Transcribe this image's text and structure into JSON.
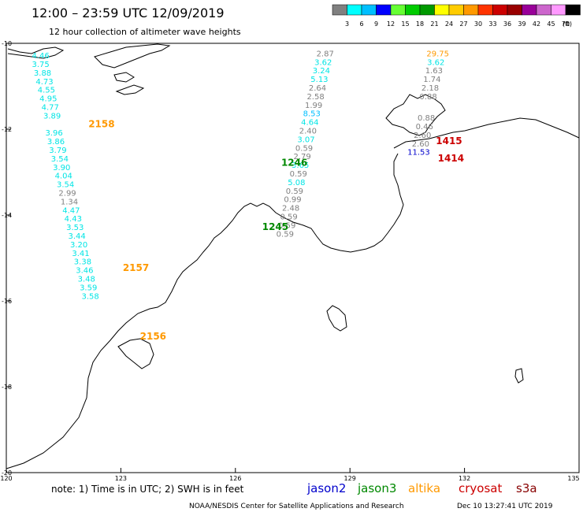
{
  "header": {
    "title": "12:00 – 23:59 UTC 12/09/2019",
    "subtitle": "12 hour collection of altimeter wave heights"
  },
  "color_scale": {
    "labels": [
      "3",
      "6",
      "9",
      "12",
      "15",
      "18",
      "21",
      "24",
      "27",
      "30",
      "33",
      "36",
      "39",
      "42",
      "45",
      "70"
    ],
    "unit": "(ft)",
    "colors": [
      "#808080",
      "#00ffff",
      "#00bfff",
      "#0000ff",
      "#66ff33",
      "#00cc00",
      "#009900",
      "#ffff00",
      "#ffcc00",
      "#ff9900",
      "#ff3300",
      "#cc0000",
      "#990000",
      "#990099",
      "#cc66cc",
      "#ff99ff",
      "#000000"
    ]
  },
  "axes": {
    "y_labels": [
      "-10",
      "-12",
      "-14",
      "-16",
      "-18",
      "-20"
    ],
    "x_labels": [
      "120",
      "123",
      "126",
      "129",
      "132",
      "135"
    ]
  },
  "footer": {
    "note": "note:  1) Time is in UTC;  2) SWH is in feet",
    "credit": "NOAA/NESDIS Center for Satellite Applications and Research",
    "timestamp": "Dec 10 13:27:41 UTC 2019",
    "missions": [
      {
        "name": "jason2",
        "color": "#0000cc"
      },
      {
        "name": "jason3",
        "color": "#008800"
      },
      {
        "name": "altika",
        "color": "#ff9900"
      },
      {
        "name": "cryosat",
        "color": "#cc0000"
      },
      {
        "name": "s3a",
        "color": "#880000"
      }
    ]
  },
  "tracks": [
    {
      "mission": "altika",
      "color": "#ff9900",
      "labels": [
        {
          "text": "2158",
          "lon": 122.15,
          "lat": -11.95
        },
        {
          "text": "2157",
          "lon": 123.05,
          "lat": -15.3
        },
        {
          "text": "2156",
          "lon": 123.5,
          "lat": -16.9
        }
      ],
      "points": [
        {
          "v": "4.46",
          "lon": 120.9,
          "lat": -10.35,
          "c": "#00e5e5"
        },
        {
          "v": "3.75",
          "lon": 120.9,
          "lat": -10.55,
          "c": "#00e5e5"
        },
        {
          "v": "3.88",
          "lon": 120.95,
          "lat": -10.75,
          "c": "#00e5e5"
        },
        {
          "v": "4.73",
          "lon": 121.0,
          "lat": -10.95,
          "c": "#00e5e5"
        },
        {
          "v": "4.55",
          "lon": 121.05,
          "lat": -11.15,
          "c": "#00e5e5"
        },
        {
          "v": "4.95",
          "lon": 121.1,
          "lat": -11.35,
          "c": "#00e5e5"
        },
        {
          "v": "4.77",
          "lon": 121.15,
          "lat": -11.55,
          "c": "#00e5e5"
        },
        {
          "v": "3.89",
          "lon": 121.2,
          "lat": -11.75,
          "c": "#00e5e5"
        },
        {
          "v": "3.96",
          "lon": 121.25,
          "lat": -12.15,
          "c": "#00e5e5"
        },
        {
          "v": "3.86",
          "lon": 121.3,
          "lat": -12.35,
          "c": "#00e5e5"
        },
        {
          "v": "3.79",
          "lon": 121.35,
          "lat": -12.55,
          "c": "#00e5e5"
        },
        {
          "v": "3.54",
          "lon": 121.4,
          "lat": -12.75,
          "c": "#00e5e5"
        },
        {
          "v": "3.90",
          "lon": 121.45,
          "lat": -12.95,
          "c": "#00e5e5"
        },
        {
          "v": "4.04",
          "lon": 121.5,
          "lat": -13.15,
          "c": "#00e5e5"
        },
        {
          "v": "3.54",
          "lon": 121.55,
          "lat": -13.35,
          "c": "#00e5e5"
        },
        {
          "v": "2.99",
          "lon": 121.6,
          "lat": -13.55,
          "c": "#808080"
        },
        {
          "v": "1.34",
          "lon": 121.65,
          "lat": -13.75,
          "c": "#808080"
        },
        {
          "v": "4.47",
          "lon": 121.7,
          "lat": -13.95,
          "c": "#00e5e5"
        },
        {
          "v": "4.43",
          "lon": 121.75,
          "lat": -14.15,
          "c": "#00e5e5"
        },
        {
          "v": "3.53",
          "lon": 121.8,
          "lat": -14.35,
          "c": "#00e5e5"
        },
        {
          "v": "3.44",
          "lon": 121.85,
          "lat": -14.55,
          "c": "#00e5e5"
        },
        {
          "v": "3.20",
          "lon": 121.9,
          "lat": -14.75,
          "c": "#00e5e5"
        },
        {
          "v": "3.41",
          "lon": 121.95,
          "lat": -14.95,
          "c": "#00e5e5"
        },
        {
          "v": "3.38",
          "lon": 122.0,
          "lat": -15.15,
          "c": "#00e5e5"
        },
        {
          "v": "3.46",
          "lon": 122.05,
          "lat": -15.35,
          "c": "#00e5e5"
        },
        {
          "v": "3.48",
          "lon": 122.1,
          "lat": -15.55,
          "c": "#00e5e5"
        },
        {
          "v": "3.59",
          "lon": 122.15,
          "lat": -15.75,
          "c": "#00e5e5"
        },
        {
          "v": "3.58",
          "lon": 122.2,
          "lat": -15.95,
          "c": "#00e5e5"
        }
      ]
    },
    {
      "mission": "jason3",
      "color": "#008800",
      "labels": [
        {
          "text": "1246",
          "lon": 127.2,
          "lat": -12.85
        },
        {
          "text": "1245",
          "lon": 126.7,
          "lat": -14.35
        }
      ],
      "points": [
        {
          "v": "2.87",
          "lon": 128.35,
          "lat": -10.3,
          "c": "#808080"
        },
        {
          "v": "3.62",
          "lon": 128.3,
          "lat": -10.5,
          "c": "#00e5e5"
        },
        {
          "v": "3.24",
          "lon": 128.25,
          "lat": -10.7,
          "c": "#00e5e5"
        },
        {
          "v": "5.13",
          "lon": 128.2,
          "lat": -10.9,
          "c": "#00e5e5"
        },
        {
          "v": "2.64",
          "lon": 128.15,
          "lat": -11.1,
          "c": "#808080"
        },
        {
          "v": "2.58",
          "lon": 128.1,
          "lat": -11.3,
          "c": "#808080"
        },
        {
          "v": "1.99",
          "lon": 128.05,
          "lat": -11.5,
          "c": "#808080"
        },
        {
          "v": "8.53",
          "lon": 128.0,
          "lat": -11.7,
          "c": "#00bfff"
        },
        {
          "v": "4.64",
          "lon": 127.95,
          "lat": -11.9,
          "c": "#00e5e5"
        },
        {
          "v": "2.40",
          "lon": 127.9,
          "lat": -12.1,
          "c": "#808080"
        },
        {
          "v": "3.07",
          "lon": 127.85,
          "lat": -12.3,
          "c": "#00e5e5"
        },
        {
          "v": "0.59",
          "lon": 127.8,
          "lat": -12.5,
          "c": "#808080"
        },
        {
          "v": "2.79",
          "lon": 127.75,
          "lat": -12.7,
          "c": "#808080"
        },
        {
          "v": "3.65",
          "lon": 127.7,
          "lat": -12.9,
          "c": "#00e5e5"
        },
        {
          "v": "0.59",
          "lon": 127.65,
          "lat": -13.1,
          "c": "#808080"
        },
        {
          "v": "5.08",
          "lon": 127.6,
          "lat": -13.3,
          "c": "#00e5e5"
        },
        {
          "v": "0.59",
          "lon": 127.55,
          "lat": -13.5,
          "c": "#808080"
        },
        {
          "v": "0.99",
          "lon": 127.5,
          "lat": -13.7,
          "c": "#808080"
        },
        {
          "v": "2.48",
          "lon": 127.45,
          "lat": -13.9,
          "c": "#808080"
        },
        {
          "v": "0.59",
          "lon": 127.4,
          "lat": -14.1,
          "c": "#808080"
        },
        {
          "v": "0.59",
          "lon": 127.35,
          "lat": -14.3,
          "c": "#808080"
        },
        {
          "v": "0.59",
          "lon": 127.3,
          "lat": -14.5,
          "c": "#808080"
        }
      ]
    },
    {
      "mission": "cryosat",
      "color": "#cc0000",
      "labels": [
        {
          "text": "1415",
          "lon": 131.25,
          "lat": -12.35
        },
        {
          "text": "1414",
          "lon": 131.3,
          "lat": -12.75
        }
      ],
      "points": [
        {
          "v": "29.75",
          "lon": 131.3,
          "lat": -10.3,
          "c": "#ff9900"
        },
        {
          "v": "3.62",
          "lon": 131.25,
          "lat": -10.5,
          "c": "#00e5e5"
        },
        {
          "v": "1.63",
          "lon": 131.2,
          "lat": -10.7,
          "c": "#808080"
        },
        {
          "v": "1.74",
          "lon": 131.15,
          "lat": -10.9,
          "c": "#808080"
        },
        {
          "v": "2.18",
          "lon": 131.1,
          "lat": -11.1,
          "c": "#808080"
        },
        {
          "v": "0.88",
          "lon": 131.05,
          "lat": -11.3,
          "c": "#808080"
        },
        {
          "v": "0.88",
          "lon": 131.0,
          "lat": -11.8,
          "c": "#808080"
        },
        {
          "v": "0.46",
          "lon": 130.95,
          "lat": -12.0,
          "c": "#808080"
        },
        {
          "v": "2.60",
          "lon": 130.9,
          "lat": -12.2,
          "c": "#808080"
        },
        {
          "v": "2.60",
          "lon": 130.85,
          "lat": -12.4,
          "c": "#808080"
        },
        {
          "v": "11.53",
          "lon": 130.8,
          "lat": -12.6,
          "c": "#0000cc"
        }
      ]
    }
  ]
}
